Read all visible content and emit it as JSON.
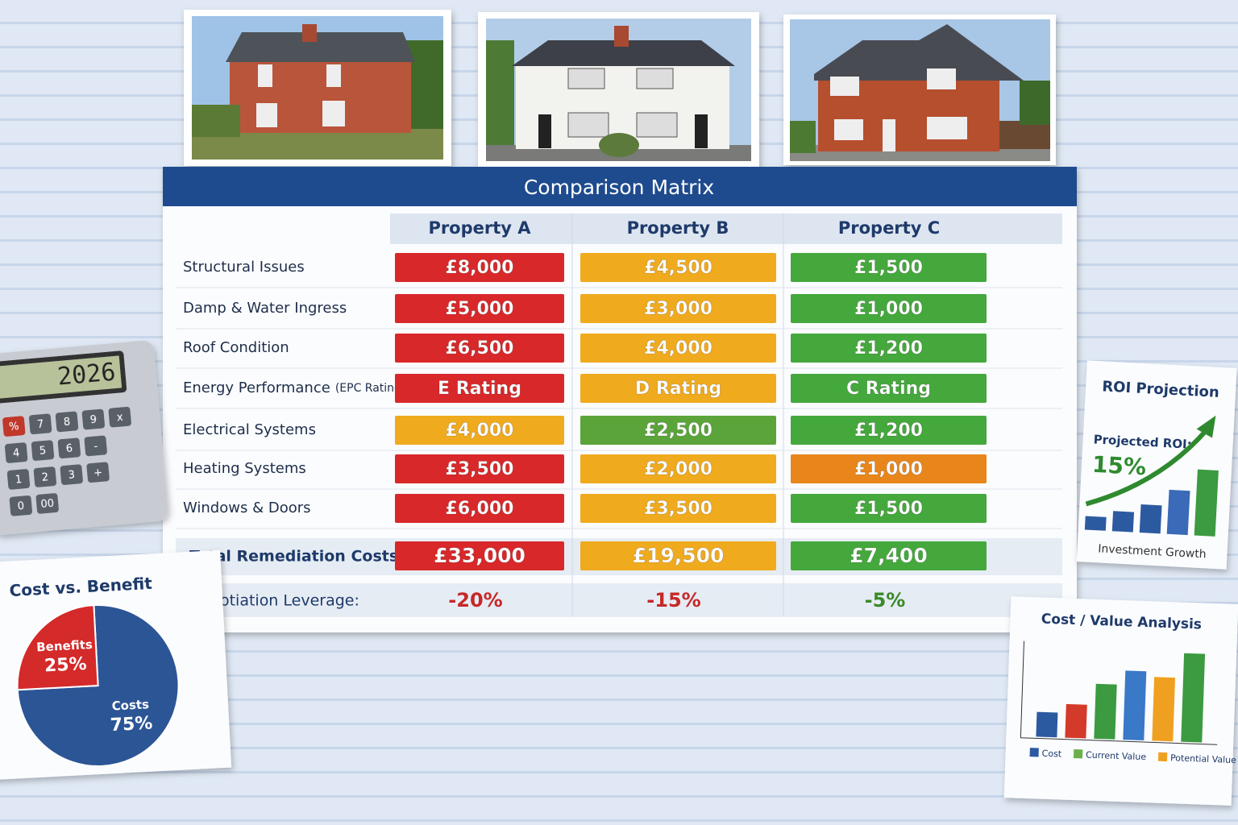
{
  "matrix": {
    "title": "Comparison Matrix",
    "columns": [
      "Property A",
      "Property B",
      "Property C"
    ],
    "rows": [
      {
        "label": "Structural Issues",
        "cells": [
          {
            "text": "£8,000",
            "color": "#d8282a"
          },
          {
            "text": "£4,500",
            "color": "#f0aa1e"
          },
          {
            "text": "£1,500",
            "color": "#44a83c"
          }
        ]
      },
      {
        "label": "Damp & Water Ingress",
        "cells": [
          {
            "text": "£5,000",
            "color": "#d8282a"
          },
          {
            "text": "£3,000",
            "color": "#f0aa1e"
          },
          {
            "text": "£1,000",
            "color": "#44a83c"
          }
        ]
      },
      {
        "label": "Roof Condition",
        "cells": [
          {
            "text": "£6,500",
            "color": "#d8282a"
          },
          {
            "text": "£4,000",
            "color": "#f0aa1e"
          },
          {
            "text": "£1,200",
            "color": "#44a83c"
          }
        ]
      },
      {
        "label": "Energy Performance",
        "note": "(EPC Rating)",
        "cells": [
          {
            "text": "E Rating",
            "color": "#d8282a"
          },
          {
            "text": "D Rating",
            "color": "#f0aa1e"
          },
          {
            "text": "C Rating",
            "color": "#44a83c"
          }
        ]
      },
      {
        "label": "Electrical Systems",
        "cells": [
          {
            "text": "£4,000",
            "color": "#f0aa1e"
          },
          {
            "text": "£2,500",
            "color": "#5aa43a"
          },
          {
            "text": "£1,200",
            "color": "#44a83c"
          }
        ]
      },
      {
        "label": "Heating Systems",
        "cells": [
          {
            "text": "£3,500",
            "color": "#d8282a"
          },
          {
            "text": "£2,000",
            "color": "#f0aa1e"
          },
          {
            "text": "£1,000",
            "color": "#e8861c"
          }
        ]
      },
      {
        "label": "Windows & Doors",
        "cells": [
          {
            "text": "£6,000",
            "color": "#d8282a"
          },
          {
            "text": "£3,500",
            "color": "#f0aa1e"
          },
          {
            "text": "£1,500",
            "color": "#44a83c"
          }
        ]
      }
    ],
    "total": {
      "label": "Total Remediation Costs:",
      "cells": [
        {
          "text": "£33,000",
          "color": "#d8282a"
        },
        {
          "text": "£19,500",
          "color": "#f0aa1e"
        },
        {
          "text": "£7,400",
          "color": "#44a83c"
        }
      ]
    },
    "leverage": {
      "label": "Negotiation Leverage:",
      "cells": [
        {
          "text": "-20%",
          "color": "#c62828"
        },
        {
          "text": "-15%",
          "color": "#c62828"
        },
        {
          "text": "-5%",
          "color": "#3a8a2a"
        }
      ]
    }
  },
  "calculator": {
    "display": "2026",
    "keys": [
      [
        "%",
        "7",
        "8",
        "9",
        "x"
      ],
      [
        "4",
        "5",
        "6",
        "-"
      ],
      [
        "1",
        "2",
        "3",
        "+"
      ],
      [
        "0",
        "00"
      ]
    ]
  },
  "cost_benefit": {
    "type": "pie",
    "title": "Cost vs. Benefit",
    "categories": [
      "Costs",
      "Benefits"
    ],
    "values": [
      75,
      25
    ],
    "value_labels": [
      "75%",
      "25%"
    ],
    "colors": [
      "#2c5596",
      "#d42a2a"
    ]
  },
  "roi": {
    "title": "ROI Projection",
    "label": "Projected ROI:",
    "value": "15%",
    "footer": "Investment Growth"
  },
  "cost_value": {
    "type": "bar",
    "title": "Cost / Value Analysis",
    "values": [
      28,
      38,
      62,
      78,
      72,
      100
    ],
    "colors": [
      "#2c5aa0",
      "#d43a2a",
      "#3c9a40",
      "#3a78c8",
      "#f0a020",
      "#3c9a40"
    ],
    "ylim": [
      0,
      100
    ],
    "legend": [
      {
        "name": "Cost",
        "color": "#2c5aa0"
      },
      {
        "name": "Current Value",
        "color": "#6ab04c"
      },
      {
        "name": "Potential Value",
        "color": "#f0a020"
      }
    ]
  }
}
